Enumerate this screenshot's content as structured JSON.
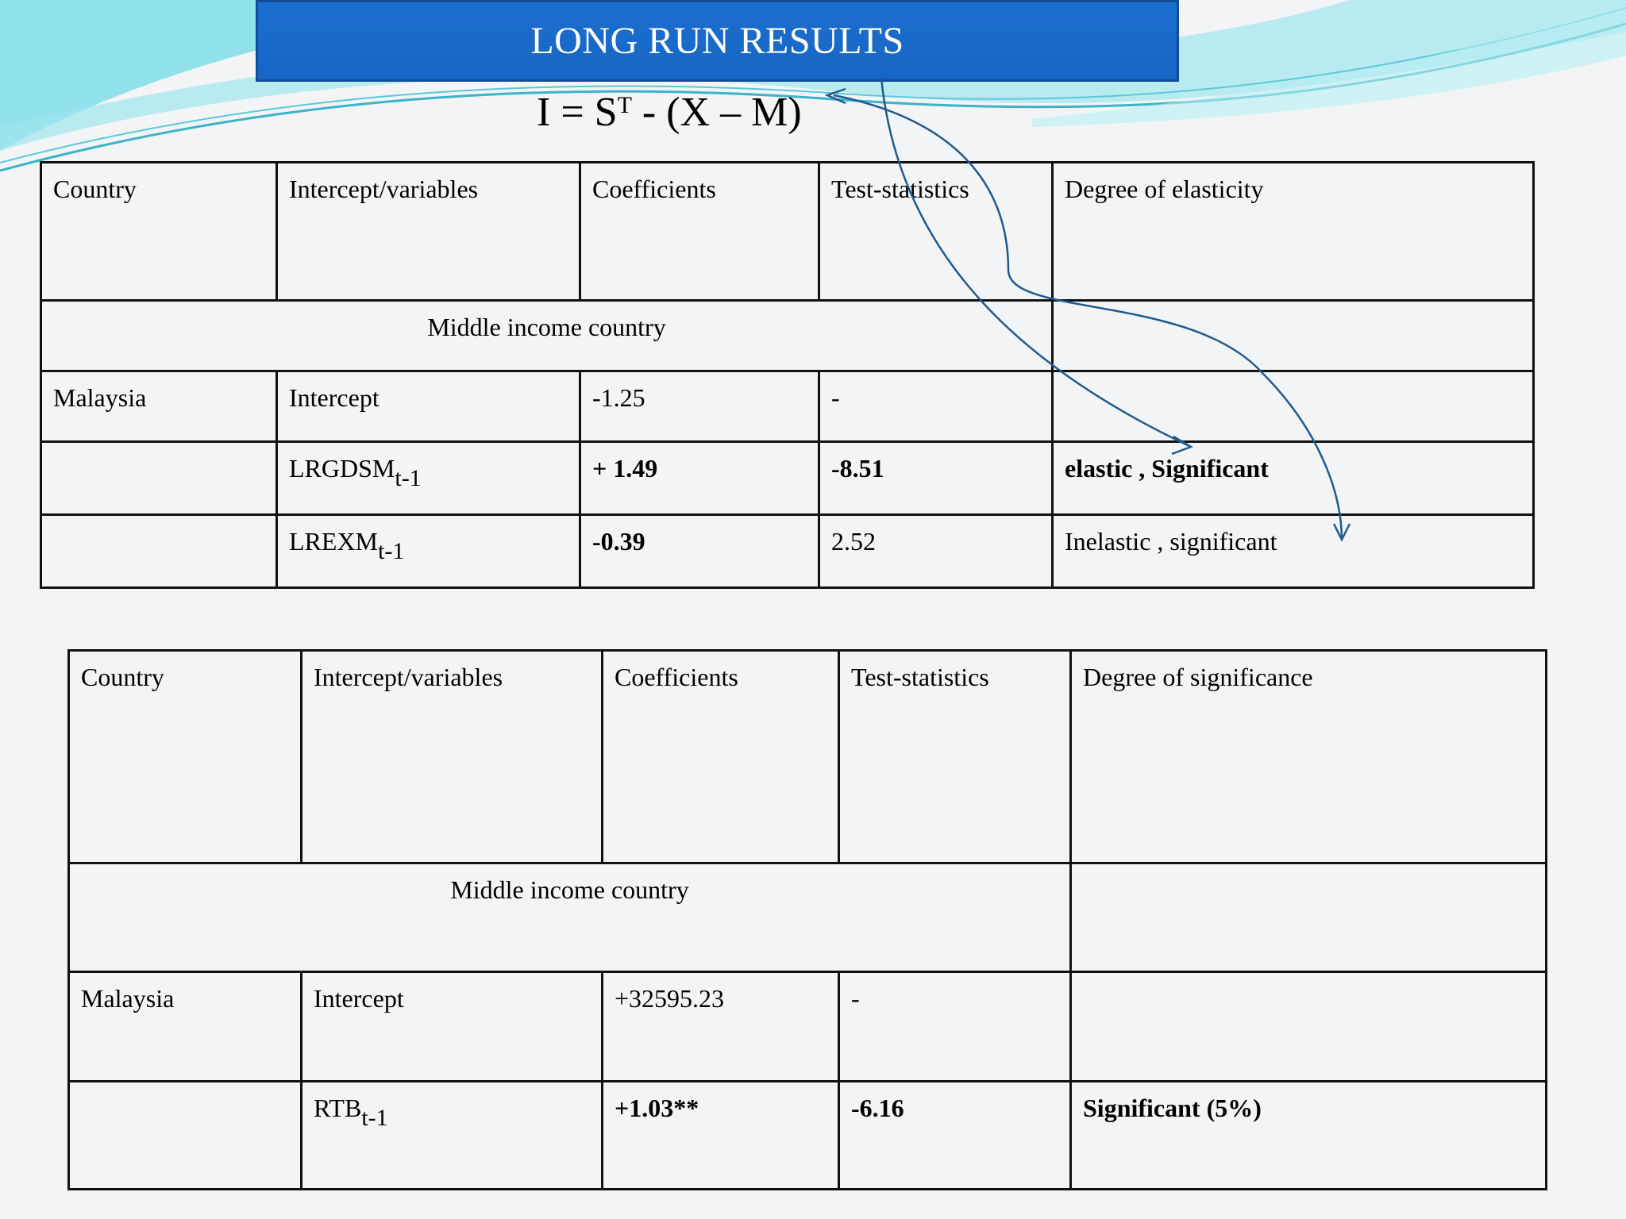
{
  "banner": {
    "title": "LONG RUN RESULTS"
  },
  "equation": {
    "left": "I = S",
    "sup": "T",
    "right": "  - (X – M)"
  },
  "table1": {
    "headers": [
      "Country",
      "Intercept/variables",
      "Coefficients",
      "Test-statistics",
      "Degree of elasticity"
    ],
    "group_label": "Middle  income country",
    "intercept_row": {
      "country": "Malaysia",
      "variable": "Intercept",
      "coefficient": "-1.25",
      "test_stat": "-",
      "degree": ""
    },
    "rows": [
      {
        "country": "",
        "var_main": "LRGDSM",
        "var_sub": "t-1",
        "coefficient": "+ 1.49",
        "test_stat": "-8.51",
        "degree": "elastic , Significant"
      },
      {
        "country": "",
        "var_main": "LREXM",
        "var_sub": "t-1",
        "coefficient": "-0.39",
        "test_stat": "2.52",
        "degree": "Inelastic , significant"
      }
    ]
  },
  "table2": {
    "headers": [
      "Country",
      "Intercept/variables",
      "Coefficients",
      "Test-statistics",
      "Degree of significance"
    ],
    "group_label": "Middle  income country",
    "intercept_row": {
      "country": "Malaysia",
      "variable": "Intercept",
      "coefficient": "+32595.23",
      "test_stat": "-",
      "degree": ""
    },
    "rows": [
      {
        "country": "",
        "var_main": "RTB",
        "var_sub": "t-1",
        "coefficient": "+1.03**",
        "test_stat": "-6.16",
        "degree": "Significant (5%)"
      }
    ]
  },
  "colors": {
    "banner": "#1565c4",
    "arrow": "#1f5a8f",
    "wave": "#5fd3e0"
  }
}
